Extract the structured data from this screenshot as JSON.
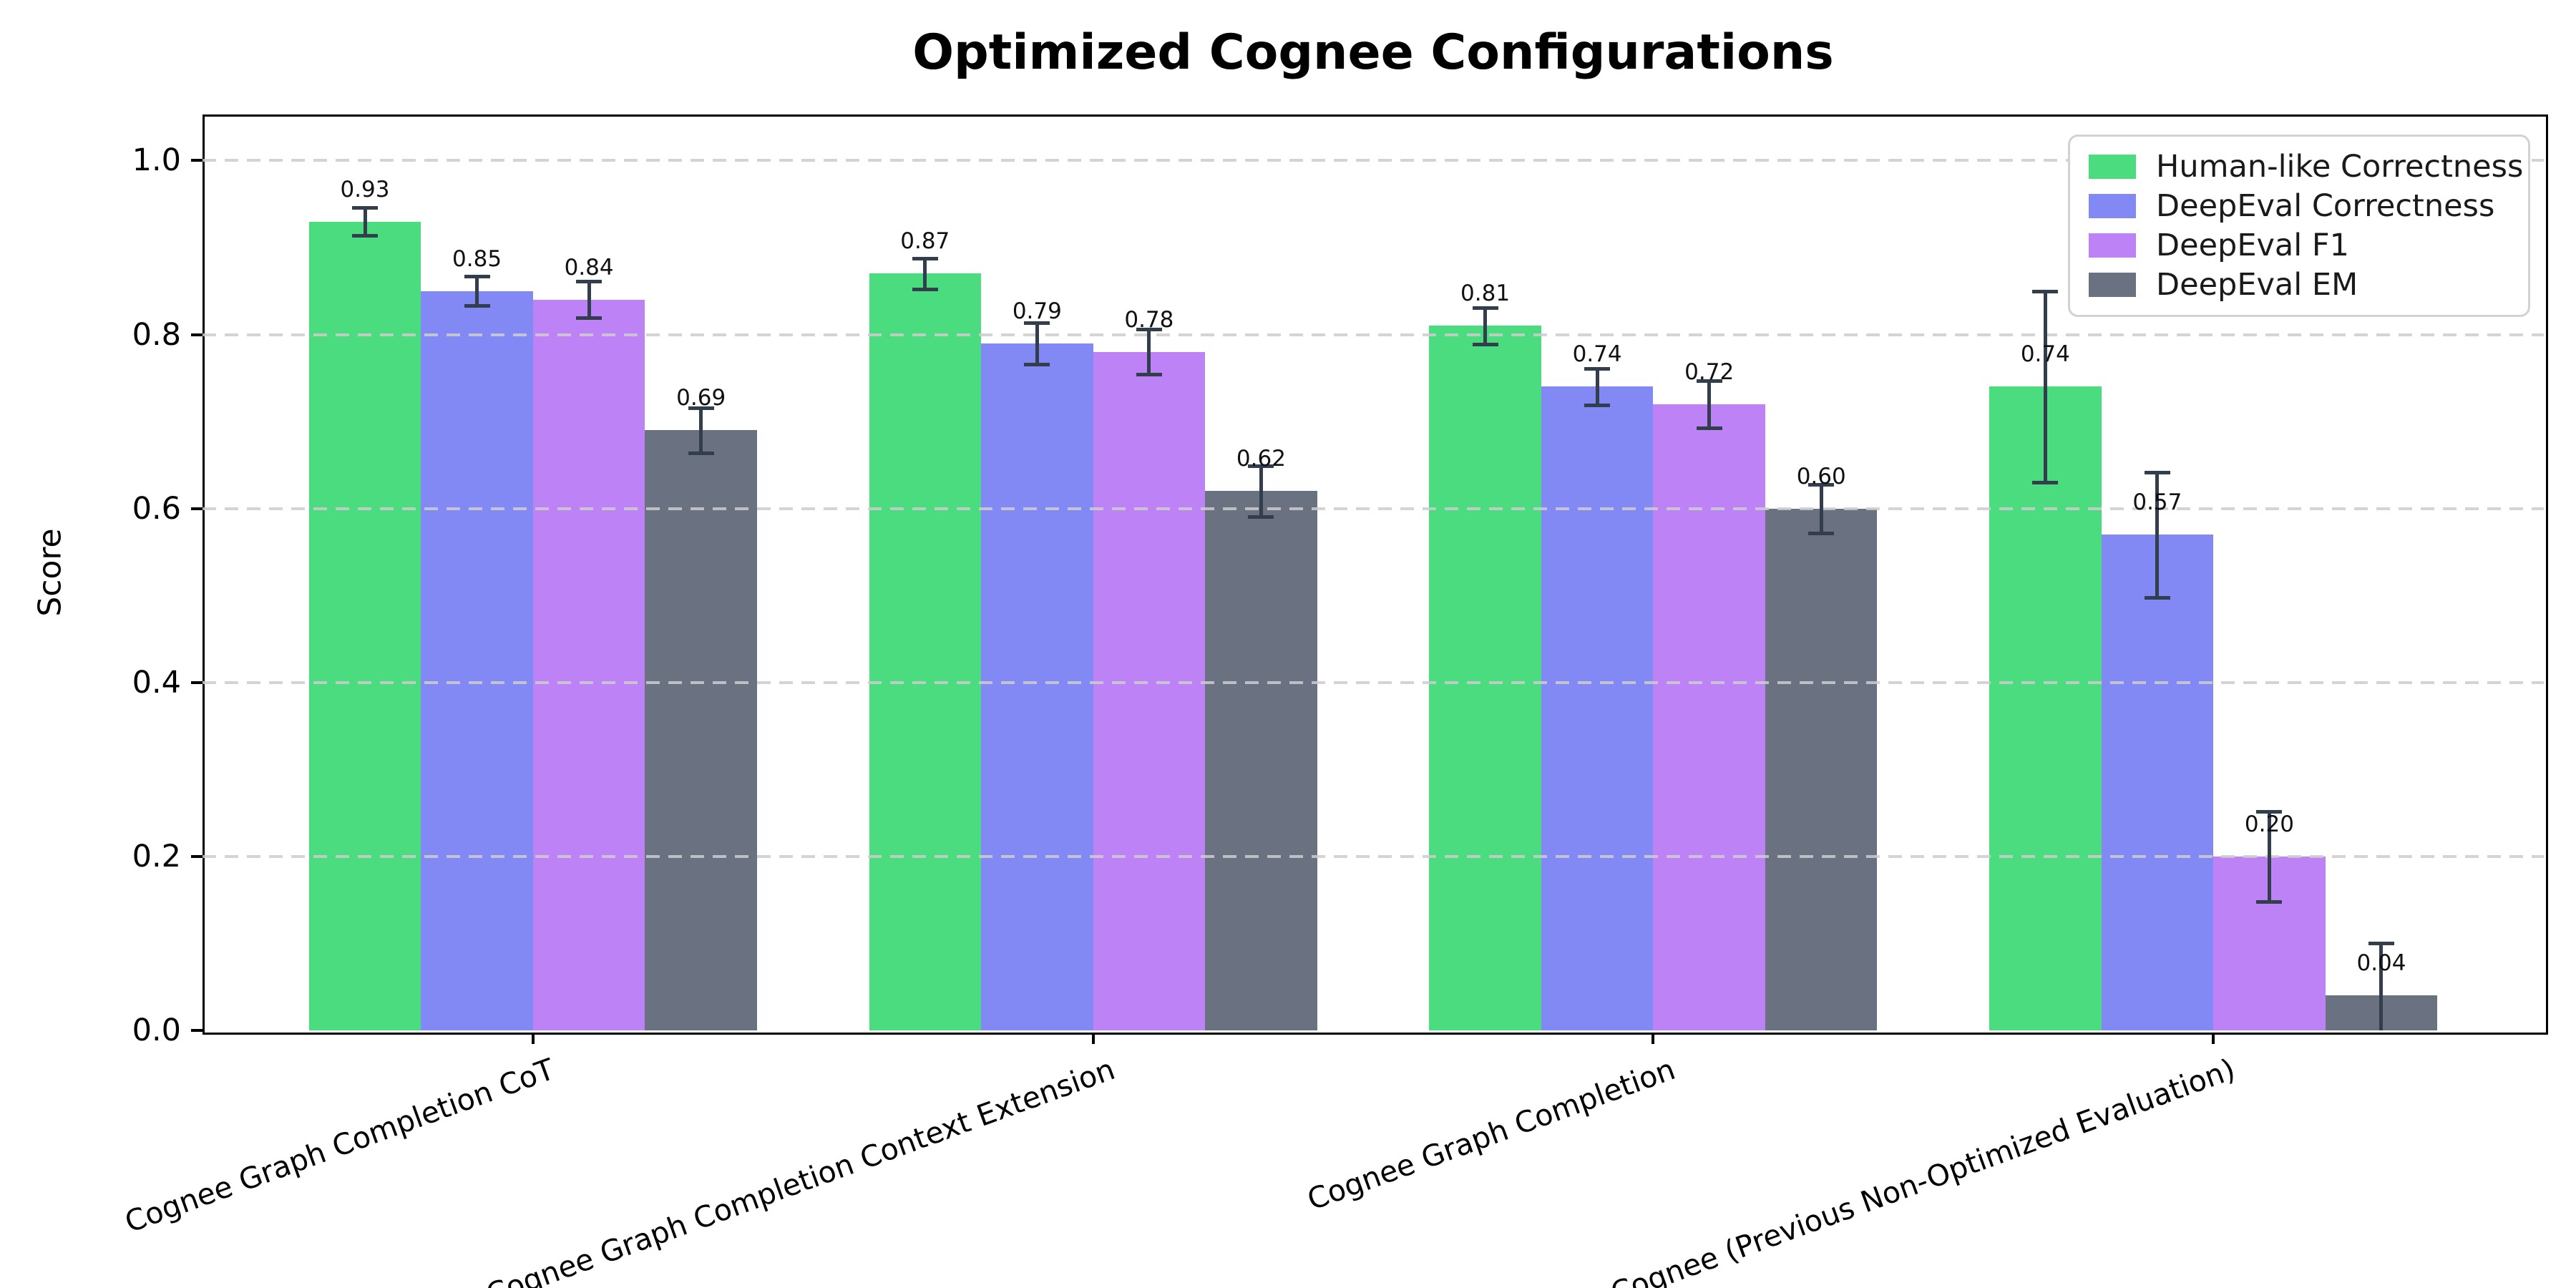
{
  "chart_data": {
    "type": "bar",
    "title": "Optimized Cognee Configurations",
    "xlabel": "",
    "ylabel": "Score",
    "categories": [
      "Cognee Graph Completion CoT",
      "Cognee Graph Completion Context Extension",
      "Cognee Graph Completion",
      "Cognee (Previous Non-Optimized Evaluation)"
    ],
    "series": [
      {
        "name": "Human-like Correctness",
        "color": "#4bdc80",
        "values": [
          0.93,
          0.87,
          0.81,
          0.74
        ],
        "errors": [
          0.016,
          0.018,
          0.021,
          0.11
        ]
      },
      {
        "name": "DeepEval Correctness",
        "color": "#8289f5",
        "values": [
          0.85,
          0.79,
          0.74,
          0.57
        ],
        "errors": [
          0.017,
          0.024,
          0.021,
          0.072
        ]
      },
      {
        "name": "DeepEval F1",
        "color": "#bd82f5",
        "values": [
          0.84,
          0.78,
          0.72,
          0.2
        ],
        "errors": [
          0.021,
          0.026,
          0.027,
          0.052
        ]
      },
      {
        "name": "DeepEval EM",
        "color": "#6a7180",
        "values": [
          0.69,
          0.62,
          0.6,
          0.04
        ],
        "errors": [
          0.026,
          0.029,
          0.028,
          0.06
        ]
      }
    ],
    "yticks": [
      "0.0",
      "0.2",
      "0.4",
      "0.6",
      "0.8",
      "1.0"
    ],
    "ytick_values": [
      0.0,
      0.2,
      0.4,
      0.6,
      0.8,
      1.0
    ],
    "ylim": [
      0,
      1.053
    ],
    "grid": "dashed horizontal gridlines drawn over bars",
    "legend_position": "upper right",
    "error_bar_color": "#333e4d",
    "value_label_format": "2 decimals above each bar"
  }
}
